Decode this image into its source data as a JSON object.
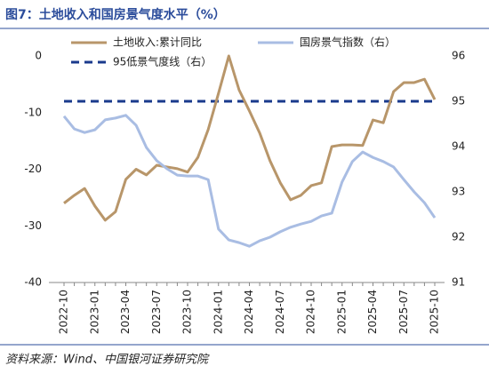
{
  "chart_data": {
    "type": "line",
    "title": "图7：土地收入和国房景气度水平（%）",
    "source": "资料来源：Wind、中国银河证券研究院",
    "categories": [
      "2022-10",
      null,
      null,
      "2023-01",
      null,
      null,
      "2023-04",
      null,
      null,
      "2023-07",
      null,
      null,
      "2023-10",
      null,
      null,
      "2024-01",
      null,
      null,
      "2024-04",
      null,
      null,
      "2024-07",
      null,
      null,
      "2024-10",
      null,
      null,
      "2025-01",
      null,
      null,
      "2025-04",
      null,
      null,
      "2025-07",
      null,
      null,
      "2025-10"
    ],
    "series": [
      {
        "name": "土地收入:累计同比",
        "color": "#b8966a",
        "axis": "y",
        "values": [
          -26,
          -24.6,
          -23.4,
          -26.5,
          -29,
          -27.5,
          -21.8,
          -20,
          -21,
          -19.3,
          -19.6,
          -19.9,
          -20.5,
          -17.9,
          -13,
          -6.6,
          0,
          -6,
          -9.7,
          -13.6,
          -18.5,
          -22.4,
          -25.4,
          -24.6,
          -22.9,
          -22.4,
          -16,
          -15.7,
          -15.7,
          -15.8,
          -11.3,
          -11.8,
          -6.3,
          -4.7,
          -4.7,
          -4.1,
          -7.7
        ]
      },
      {
        "name": "国房景气指数（右）",
        "color": "#a9bde3",
        "axis": "y2",
        "values": [
          94.67,
          94.39,
          94.31,
          94.37,
          94.59,
          94.63,
          94.69,
          94.47,
          93.98,
          93.69,
          93.51,
          93.37,
          93.35,
          93.35,
          93.27,
          92.18,
          91.94,
          91.88,
          91.8,
          91.92,
          92.0,
          92.12,
          92.22,
          92.29,
          92.35,
          92.47,
          92.53,
          93.22,
          93.67,
          93.88,
          93.76,
          93.67,
          93.55,
          93.27,
          93.0,
          92.76,
          92.43
        ]
      }
    ],
    "reference_lines": [
      {
        "name": "95低景气度线（右）",
        "value": 95,
        "axis": "y2",
        "color": "#1a3a8c"
      }
    ],
    "ylim": [
      -40,
      0
    ],
    "yticks": [
      0,
      -10,
      -20,
      -30,
      -40
    ],
    "y2lim": [
      91,
      96
    ],
    "y2ticks": [
      96,
      95,
      94,
      93,
      92,
      91
    ]
  }
}
